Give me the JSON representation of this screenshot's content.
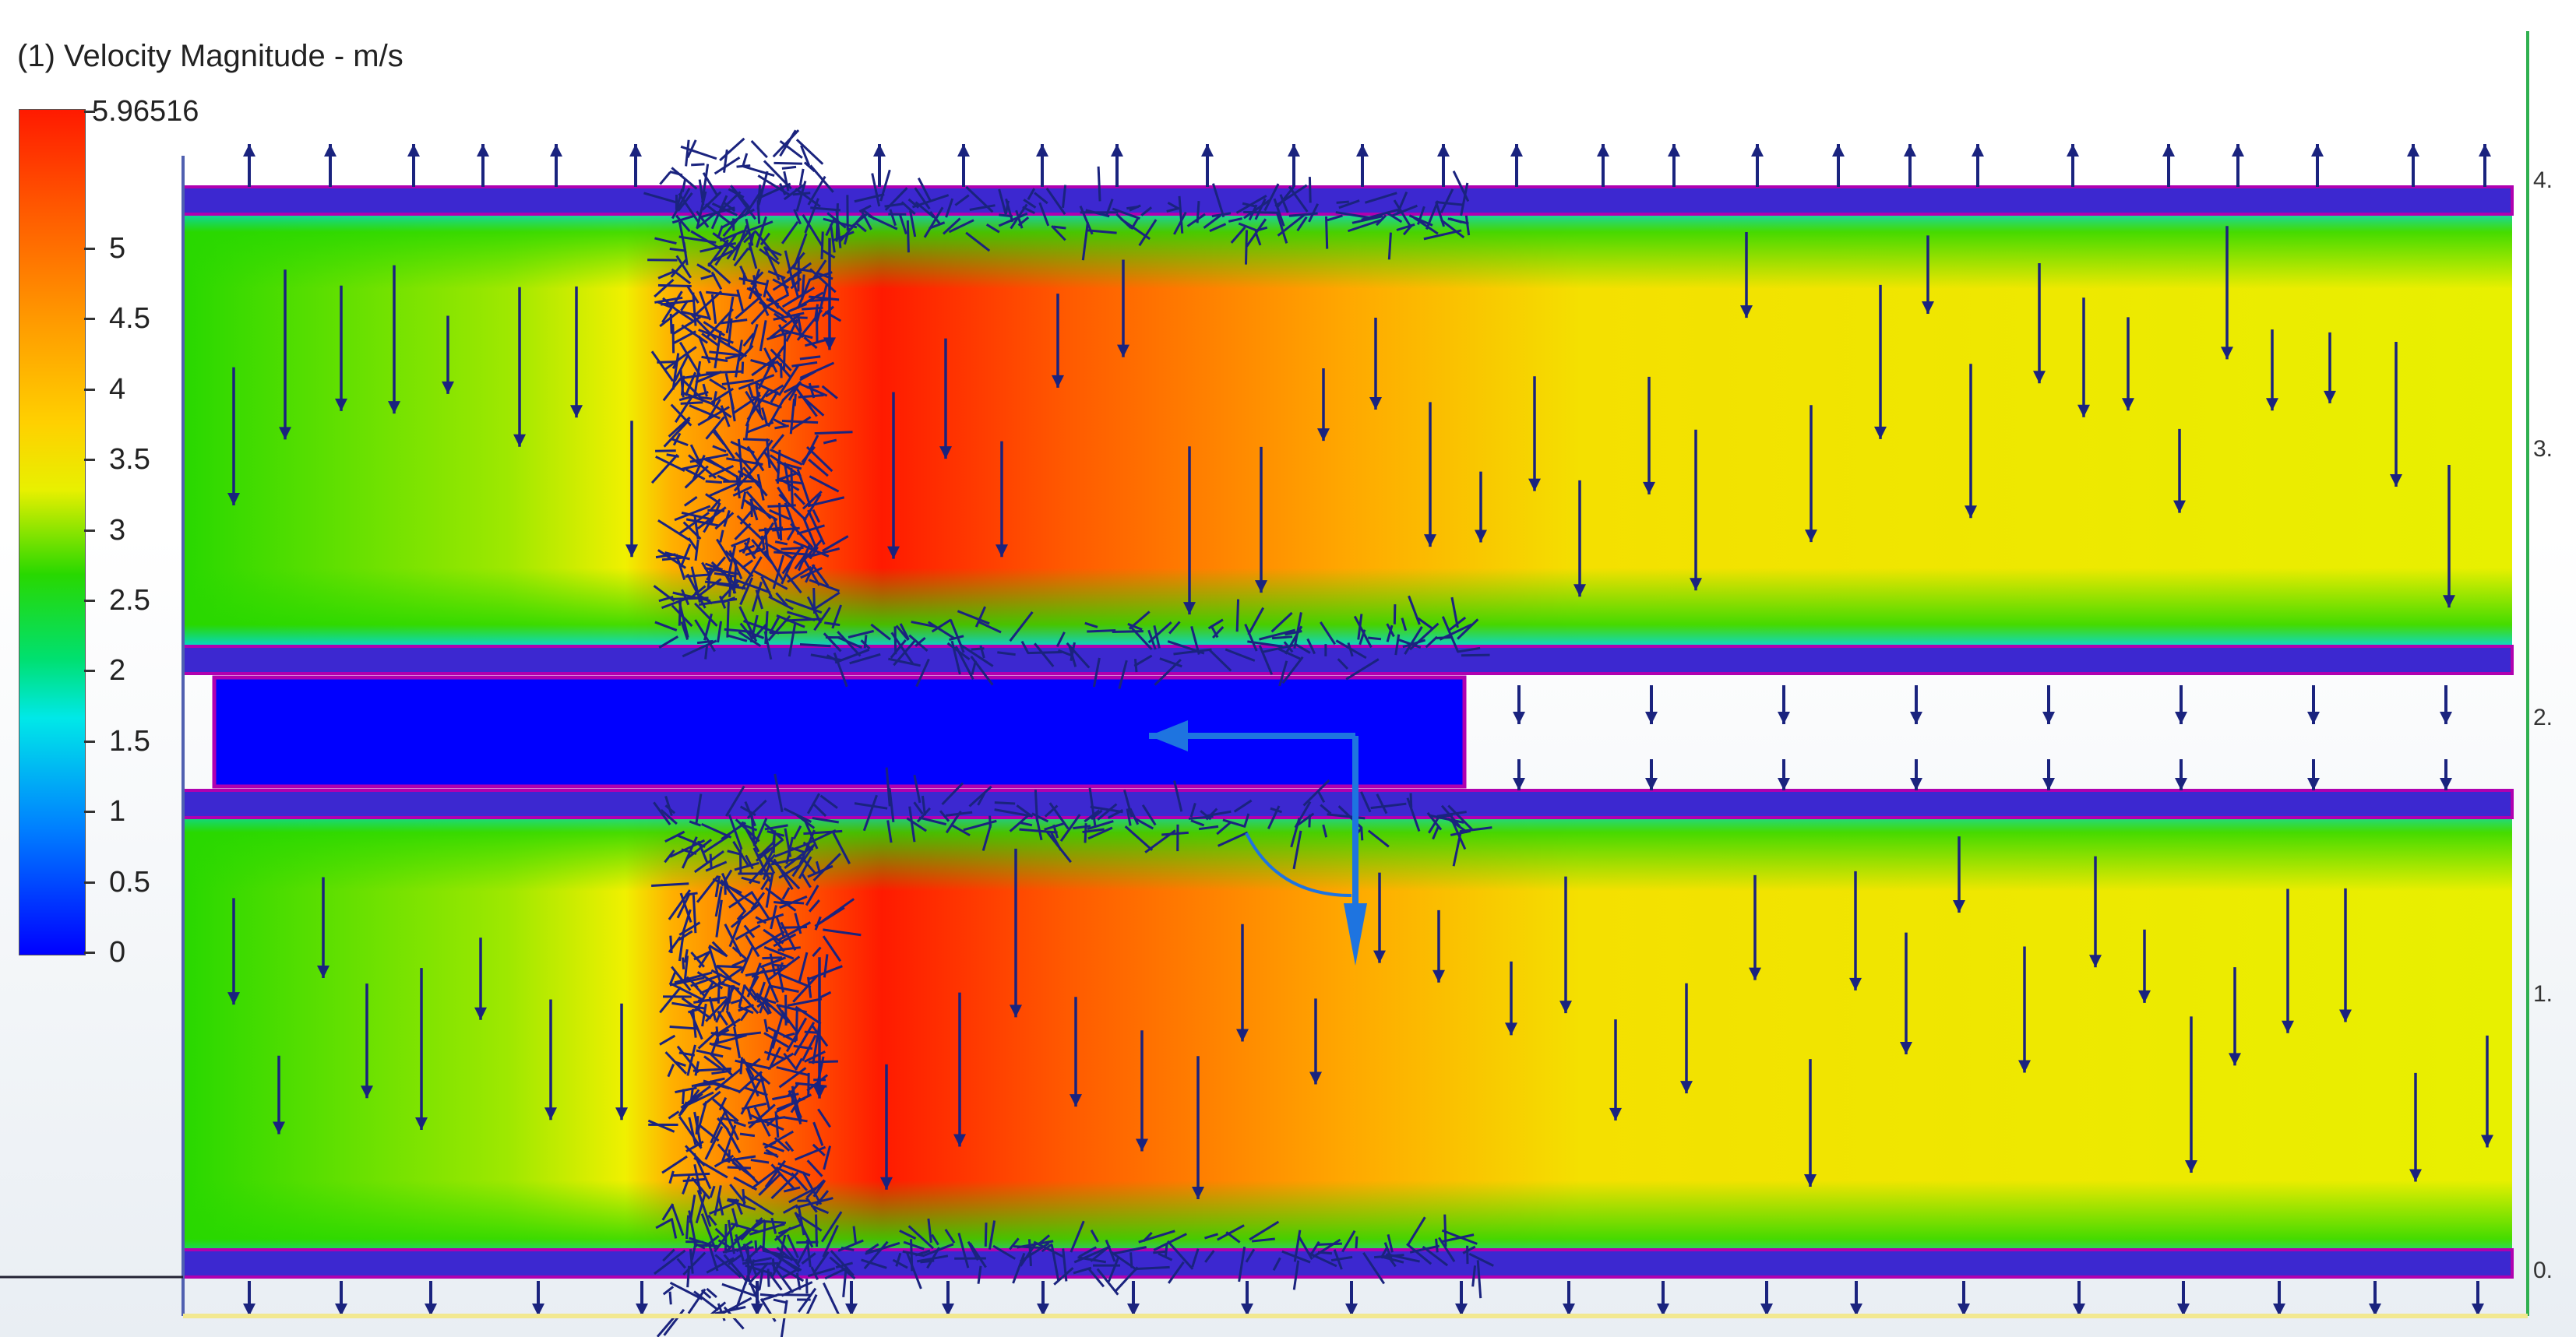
{
  "title": "(1) Velocity Magnitude - m/s",
  "legend": {
    "max_label": "5.96516",
    "ticks": [
      "5",
      "4.5",
      "4",
      "3.5",
      "3",
      "2.5",
      "2",
      "1.5",
      "1",
      "0.5",
      "0"
    ]
  },
  "colors": {
    "max": "#ff1a00",
    "high": "#ff9a00",
    "mid": "#e8f000",
    "low_mid": "#28d800",
    "low": "#00e8e8",
    "min": "#0000ff",
    "arrows": "#1a237e",
    "walls": "#3c28d0",
    "wall_edge": "#b000b0",
    "indicator": "#1e74e0"
  },
  "edge_labels": [
    "4.",
    "3.",
    "2.",
    "1.",
    "0."
  ],
  "icons": {
    "direction_indicator": "view-direction-icon"
  }
}
